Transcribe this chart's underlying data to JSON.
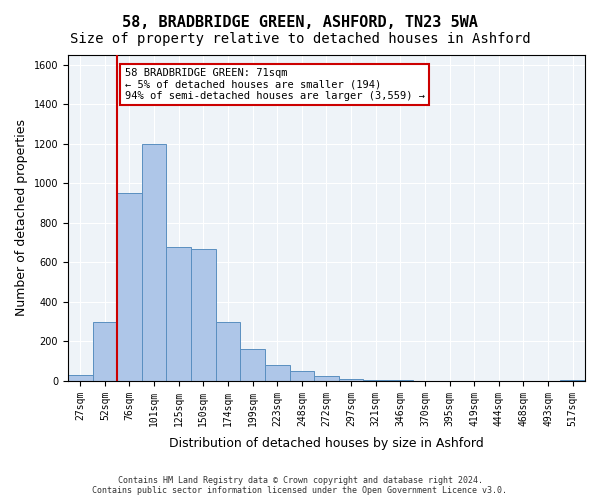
{
  "title": "58, BRADBRIDGE GREEN, ASHFORD, TN23 5WA",
  "subtitle": "Size of property relative to detached houses in Ashford",
  "xlabel": "Distribution of detached houses by size in Ashford",
  "ylabel": "Number of detached properties",
  "categories": [
    "27sqm",
    "52sqm",
    "76sqm",
    "101sqm",
    "125sqm",
    "150sqm",
    "174sqm",
    "199sqm",
    "223sqm",
    "248sqm",
    "272sqm",
    "297sqm",
    "321sqm",
    "346sqm",
    "370sqm",
    "395sqm",
    "419sqm",
    "444sqm",
    "468sqm",
    "493sqm",
    "517sqm"
  ],
  "values": [
    30,
    300,
    950,
    1200,
    680,
    670,
    300,
    160,
    80,
    50,
    25,
    10,
    5,
    3,
    0,
    2,
    0,
    0,
    0,
    0,
    5
  ],
  "bar_color": "#aec6e8",
  "bar_edge_color": "#5a8fc0",
  "bar_alpha": 0.85,
  "red_line_index": 1.5,
  "ylim": [
    0,
    1650
  ],
  "yticks": [
    0,
    200,
    400,
    600,
    800,
    1000,
    1200,
    1400,
    1600
  ],
  "annotation_text": "58 BRADBRIDGE GREEN: 71sqm\n← 5% of detached houses are smaller (194)\n94% of semi-detached houses are larger (3,559) →",
  "annotation_box_color": "#ffffff",
  "annotation_box_edge": "#cc0000",
  "property_line_color": "#cc0000",
  "property_line_x": 1.5,
  "background_color": "#eef3f8",
  "footer_text": "Contains HM Land Registry data © Crown copyright and database right 2024.\nContains public sector information licensed under the Open Government Licence v3.0.",
  "title_fontsize": 11,
  "subtitle_fontsize": 10,
  "tick_fontsize": 7,
  "ylabel_fontsize": 9,
  "xlabel_fontsize": 9
}
